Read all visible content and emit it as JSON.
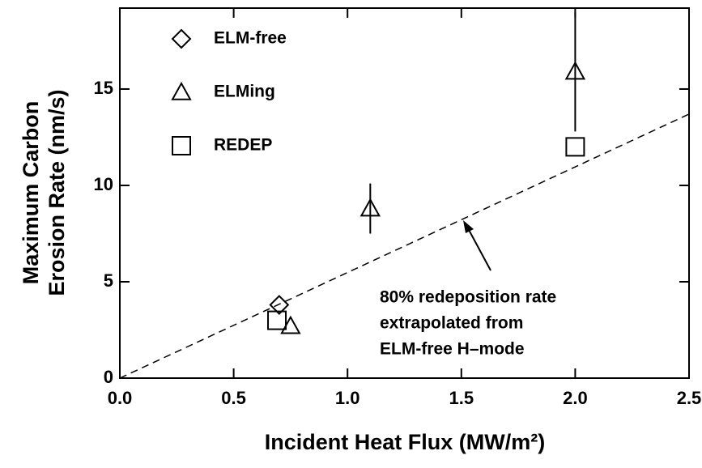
{
  "chart_data": {
    "type": "scatter",
    "xlabel": "Incident Heat Flux (MW/m²)",
    "ylabel": [
      "Maximum Carbon",
      "Erosion Rate (nm/s)"
    ],
    "xlim": [
      0,
      2.5
    ],
    "ylim": [
      0,
      19.2
    ],
    "xticks": [
      {
        "value": 0,
        "label": "0.0"
      },
      0.5,
      {
        "value": 1,
        "label": "1.0"
      },
      1.5,
      {
        "value": 2,
        "label": "2.0"
      },
      2.5
    ],
    "yticks": [
      0,
      5,
      10,
      15
    ],
    "series": [
      {
        "name": "ELM-free",
        "marker": "diamond",
        "color": "#000000",
        "x": [
          0.7
        ],
        "values": [
          3.8
        ]
      },
      {
        "name": "ELMing",
        "marker": "triangle",
        "color": "#000000",
        "x": [
          0.75,
          1.1,
          2.0
        ],
        "values": [
          2.7,
          8.8,
          15.9
        ],
        "errors": [
          null,
          1.3,
          3.1
        ]
      },
      {
        "name": "REDEP",
        "marker": "square",
        "color": "#000000",
        "x": [
          0.69,
          2.0
        ],
        "values": [
          3.0,
          12.0
        ]
      }
    ],
    "fit_line": {
      "x": [
        0,
        2.5
      ],
      "values": [
        0,
        13.7
      ],
      "style": "dashed"
    },
    "annotation": [
      "80% redeposition rate",
      "extrapolated from",
      "ELM-free H–mode"
    ]
  }
}
